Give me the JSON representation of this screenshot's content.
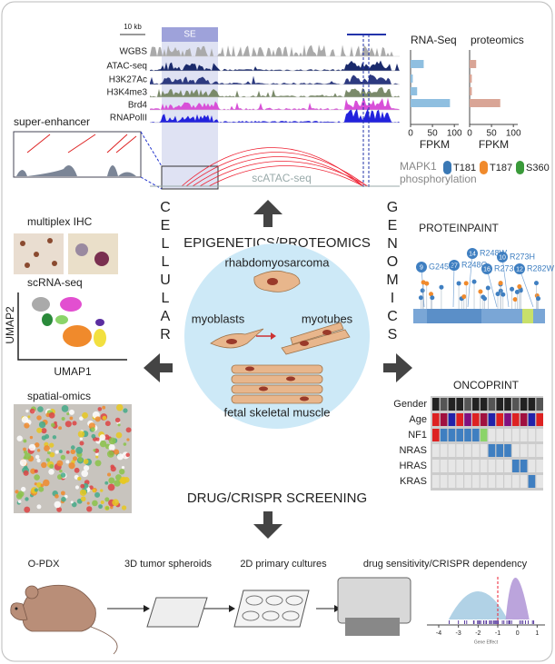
{
  "epigenetics": {
    "scale_label": "10 kb",
    "se_label": "SE",
    "tracks": [
      "WGBS",
      "ATAC-seq",
      "H3K27Ac",
      "H3K4me3",
      "Brd4",
      "RNAPolII"
    ],
    "inset_label": "super-enhancer",
    "scatac_label": "scATAC-seq"
  },
  "rna_seq": {
    "title": "RNA-Seq",
    "xlabel": "FPKM",
    "xlim": [
      0,
      110
    ],
    "xticks": [
      0,
      50,
      100
    ],
    "values": [
      30,
      5,
      15,
      90
    ],
    "color": "#8fbfe0"
  },
  "proteomics": {
    "title": "proteomics",
    "xlabel": "FPKM",
    "xlim": [
      0,
      110
    ],
    "xticks": [
      0,
      50,
      100
    ],
    "values": [
      15,
      5,
      5,
      70
    ],
    "color": "#d9a596"
  },
  "phospho": {
    "protein": "MAPK1",
    "sites": [
      {
        "name": "T181",
        "color": "#3a78b5"
      },
      {
        "name": "T187",
        "color": "#f08a2c"
      },
      {
        "name": "S360",
        "color": "#3a9a3a"
      }
    ],
    "label": "phosphorylation"
  },
  "sections": {
    "top": "EPIGENETICS/PROTEOMICS",
    "bottom": "DRUG/CRISPR SCREENING",
    "left": "CELLULAR",
    "right": "GENOMICS"
  },
  "center": {
    "labels": [
      "rhabdomyosarcoma",
      "myoblasts",
      "myotubes",
      "fetal skeletal muscle"
    ]
  },
  "cellular": {
    "ihc": "multiplex IHC",
    "scrna": "scRNA-seq",
    "umap_x": "UMAP1",
    "umap_y": "UMAP2",
    "spatial": "spatial-omics"
  },
  "proteinpaint": {
    "title": "PROTEINPAINT",
    "mutations": [
      {
        "count": 14,
        "label": "R248W"
      },
      {
        "count": 27,
        "label": "R248Q"
      },
      {
        "count": 9,
        "label": "G245S"
      },
      {
        "count": 10,
        "label": "R273H"
      },
      {
        "count": 16,
        "label": "R273C"
      },
      {
        "count": 12,
        "label": "R282W"
      }
    ]
  },
  "oncoprint": {
    "title": "ONCOPRINT",
    "rows": [
      "Gender",
      "Age",
      "NF1",
      "NRAS",
      "HRAS",
      "KRAS"
    ]
  },
  "screening": {
    "steps": [
      "O-PDX",
      "3D tumor spheroids",
      "2D primary cultures",
      "drug sensitivity/CRISPR dependency"
    ],
    "xticks": [
      -4,
      -3,
      -2,
      -1,
      0,
      1
    ],
    "xlim": [
      -4.6,
      1.4
    ],
    "xlabel": "Gene Effect"
  }
}
